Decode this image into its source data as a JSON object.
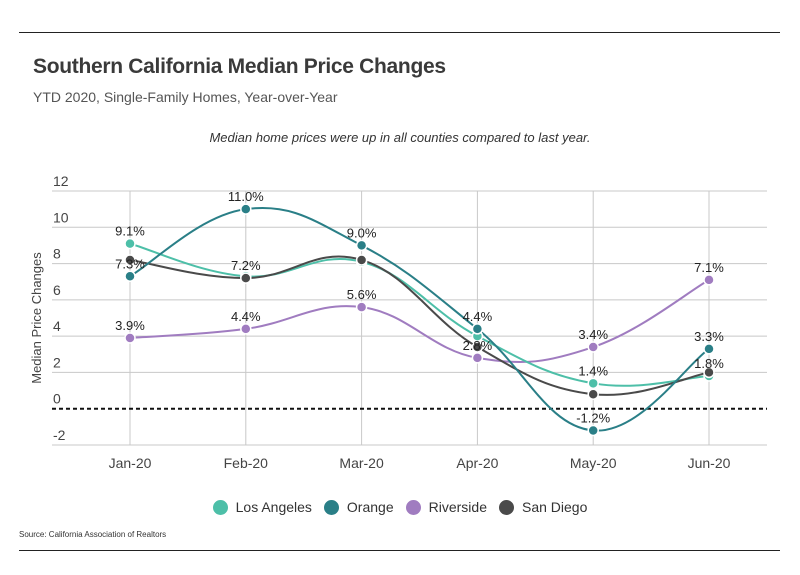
{
  "header": {
    "title": "Southern California Median Price Changes",
    "subtitle": "YTD 2020, Single-Family Homes, Year-over-Year",
    "annotation": "Median home prices were up in all counties compared to last year."
  },
  "footer": {
    "source": "Source:  California Association of Realtors"
  },
  "chart_data": {
    "type": "line",
    "title": "Southern California Median Price Changes",
    "subtitle": "YTD 2020, Single-Family Homes, Year-over-Year",
    "xlabel": "",
    "ylabel": "Median Price Changes",
    "categories": [
      "Jan-20",
      "Feb-20",
      "Mar-20",
      "Apr-20",
      "May-20",
      "Jun-20"
    ],
    "ylim": [
      -2,
      12
    ],
    "yticks": [
      12,
      10,
      8,
      6,
      4,
      2,
      0,
      -2
    ],
    "grid": true,
    "reference_line": {
      "value": 0,
      "style": "dashed"
    },
    "legend_position": "bottom",
    "series": [
      {
        "name": "Los Angeles",
        "color": "#4dbfa8",
        "values": [
          9.1,
          7.3,
          8.1,
          4.0,
          1.4,
          1.8
        ],
        "labels": [
          "9.1%",
          "",
          "",
          "",
          "1.4%",
          "1.8%"
        ]
      },
      {
        "name": "Orange",
        "color": "#2a7f87",
        "values": [
          7.3,
          11.0,
          9.0,
          4.4,
          -1.2,
          3.3
        ],
        "labels": [
          "7.3%",
          "11.0%",
          "9.0%",
          "4.4%",
          "-1.2%",
          "3.3%"
        ]
      },
      {
        "name": "Riverside",
        "color": "#a07cc0",
        "values": [
          3.9,
          4.4,
          5.6,
          2.8,
          3.4,
          7.1
        ],
        "labels": [
          "3.9%",
          "4.4%",
          "5.6%",
          "2.8%",
          "3.4%",
          "7.1%"
        ]
      },
      {
        "name": "San Diego",
        "color": "#4a4a4a",
        "values": [
          8.2,
          7.2,
          8.2,
          3.4,
          0.8,
          2.0
        ],
        "labels": [
          "",
          "7.2%",
          "",
          "",
          "",
          ""
        ]
      }
    ]
  }
}
